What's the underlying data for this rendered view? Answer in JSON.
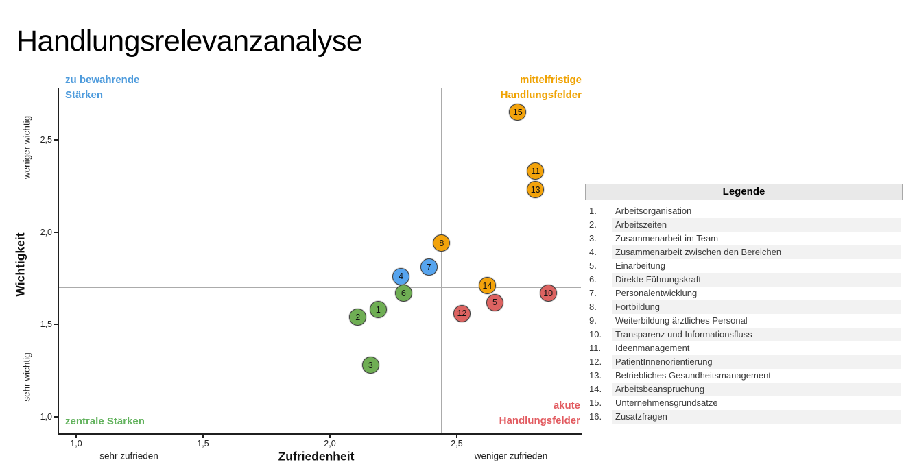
{
  "title": "Handlungsrelevanzanalyse",
  "chart_data": {
    "type": "scatter",
    "title": "Handlungsrelevanzanalyse",
    "xlabel": "Zufriedenheit",
    "ylabel": "Wichtigkeit",
    "x_axis_left_sublabel": "sehr zufrieden",
    "x_axis_right_sublabel": "weniger zufrieden",
    "y_axis_top_sublabel": "weniger wichtig",
    "y_axis_bottom_sublabel": "sehr wichtig",
    "xlim": [
      0.93,
      3.0
    ],
    "ylim": [
      0.91,
      2.78
    ],
    "grid": false,
    "x_ticks": [
      {
        "label": "1,0",
        "v": 1.0
      },
      {
        "label": "1,5",
        "v": 1.5
      },
      {
        "label": "2,0",
        "v": 2.0
      },
      {
        "label": "2,5",
        "v": 2.5
      }
    ],
    "y_ticks": [
      {
        "label": "1,0",
        "v": 1.0
      },
      {
        "label": "1,5",
        "v": 1.5
      },
      {
        "label": "2,0",
        "v": 2.0
      },
      {
        "label": "2,5",
        "v": 2.5
      }
    ],
    "reference_lines": {
      "x": 2.44,
      "y": 1.7
    },
    "quadrants": {
      "top_left": {
        "line1": "zu bewahrende",
        "line2": "Stärken",
        "color": "#4e9bdc"
      },
      "top_right": {
        "line1": "mittelfristige",
        "line2": "Handlungsfelder",
        "color": "#efa202"
      },
      "bottom_left": {
        "line1": "zentrale Stärken",
        "line2": "",
        "color": "#62b25d"
      },
      "bottom_right": {
        "line1": "akute",
        "line2": "Handlungsfelder",
        "color": "#e25b60"
      }
    },
    "point_colors": {
      "blue": "#56a4ee",
      "green": "#6fae54",
      "orange": "#f3a30b",
      "red": "#dc6361"
    },
    "points": [
      {
        "n": "1",
        "x": 2.19,
        "y": 1.58,
        "group": "green",
        "quadrant": "zentrale Stärken"
      },
      {
        "n": "2",
        "x": 2.11,
        "y": 1.54,
        "group": "green",
        "quadrant": "zentrale Stärken"
      },
      {
        "n": "3",
        "x": 2.16,
        "y": 1.28,
        "group": "green",
        "quadrant": "zentrale Stärken"
      },
      {
        "n": "4",
        "x": 2.28,
        "y": 1.76,
        "group": "blue",
        "quadrant": "zu bewahrende Stärken"
      },
      {
        "n": "5",
        "x": 2.65,
        "y": 1.62,
        "group": "red",
        "quadrant": "akute Handlungsfelder"
      },
      {
        "n": "6",
        "x": 2.29,
        "y": 1.67,
        "group": "green",
        "quadrant": "zentrale Stärken"
      },
      {
        "n": "7",
        "x": 2.39,
        "y": 1.81,
        "group": "blue",
        "quadrant": "zu bewahrende Stärken"
      },
      {
        "n": "8",
        "x": 2.44,
        "y": 1.94,
        "group": "orange",
        "quadrant": "mittelfristige Handlungsfelder"
      },
      {
        "n": "10",
        "x": 2.86,
        "y": 1.67,
        "group": "red",
        "quadrant": "akute Handlungsfelder"
      },
      {
        "n": "11",
        "x": 2.81,
        "y": 2.33,
        "group": "orange",
        "quadrant": "mittelfristige Handlungsfelder"
      },
      {
        "n": "12",
        "x": 2.52,
        "y": 1.56,
        "group": "red",
        "quadrant": "akute Handlungsfelder"
      },
      {
        "n": "13",
        "x": 2.81,
        "y": 2.23,
        "group": "orange",
        "quadrant": "mittelfristige Handlungsfelder"
      },
      {
        "n": "14",
        "x": 2.62,
        "y": 1.71,
        "group": "orange",
        "quadrant": "mittelfristige Handlungsfelder"
      },
      {
        "n": "15",
        "x": 2.74,
        "y": 2.65,
        "group": "orange",
        "quadrant": "mittelfristige Handlungsfelder"
      }
    ]
  },
  "legend": {
    "header": "Legende",
    "items": [
      {
        "num": "1.",
        "label": "Arbeitsorganisation"
      },
      {
        "num": "2.",
        "label": "Arbeitszeiten"
      },
      {
        "num": "3.",
        "label": "Zusammenarbeit im Team"
      },
      {
        "num": "4.",
        "label": "Zusammenarbeit zwischen den Bereichen"
      },
      {
        "num": "5.",
        "label": "Einarbeitung"
      },
      {
        "num": "6.",
        "label": "Direkte Führungskraft"
      },
      {
        "num": "7.",
        "label": "Personalentwicklung"
      },
      {
        "num": "8.",
        "label": "Fortbildung"
      },
      {
        "num": "9.",
        "label": "Weiterbildung ärztliches Personal"
      },
      {
        "num": "10.",
        "label": "Transparenz und Informationsfluss"
      },
      {
        "num": "11.",
        "label": "Ideenmanagement"
      },
      {
        "num": "12.",
        "label": "PatientInnenorientierung"
      },
      {
        "num": "13.",
        "label": "Betriebliches Gesundheitsmanagement"
      },
      {
        "num": "14.",
        "label": "Arbeitsbeanspruchung"
      },
      {
        "num": "15.",
        "label": "Unternehmensgrundsätze"
      },
      {
        "num": "16.",
        "label": "Zusatzfragen"
      }
    ]
  }
}
